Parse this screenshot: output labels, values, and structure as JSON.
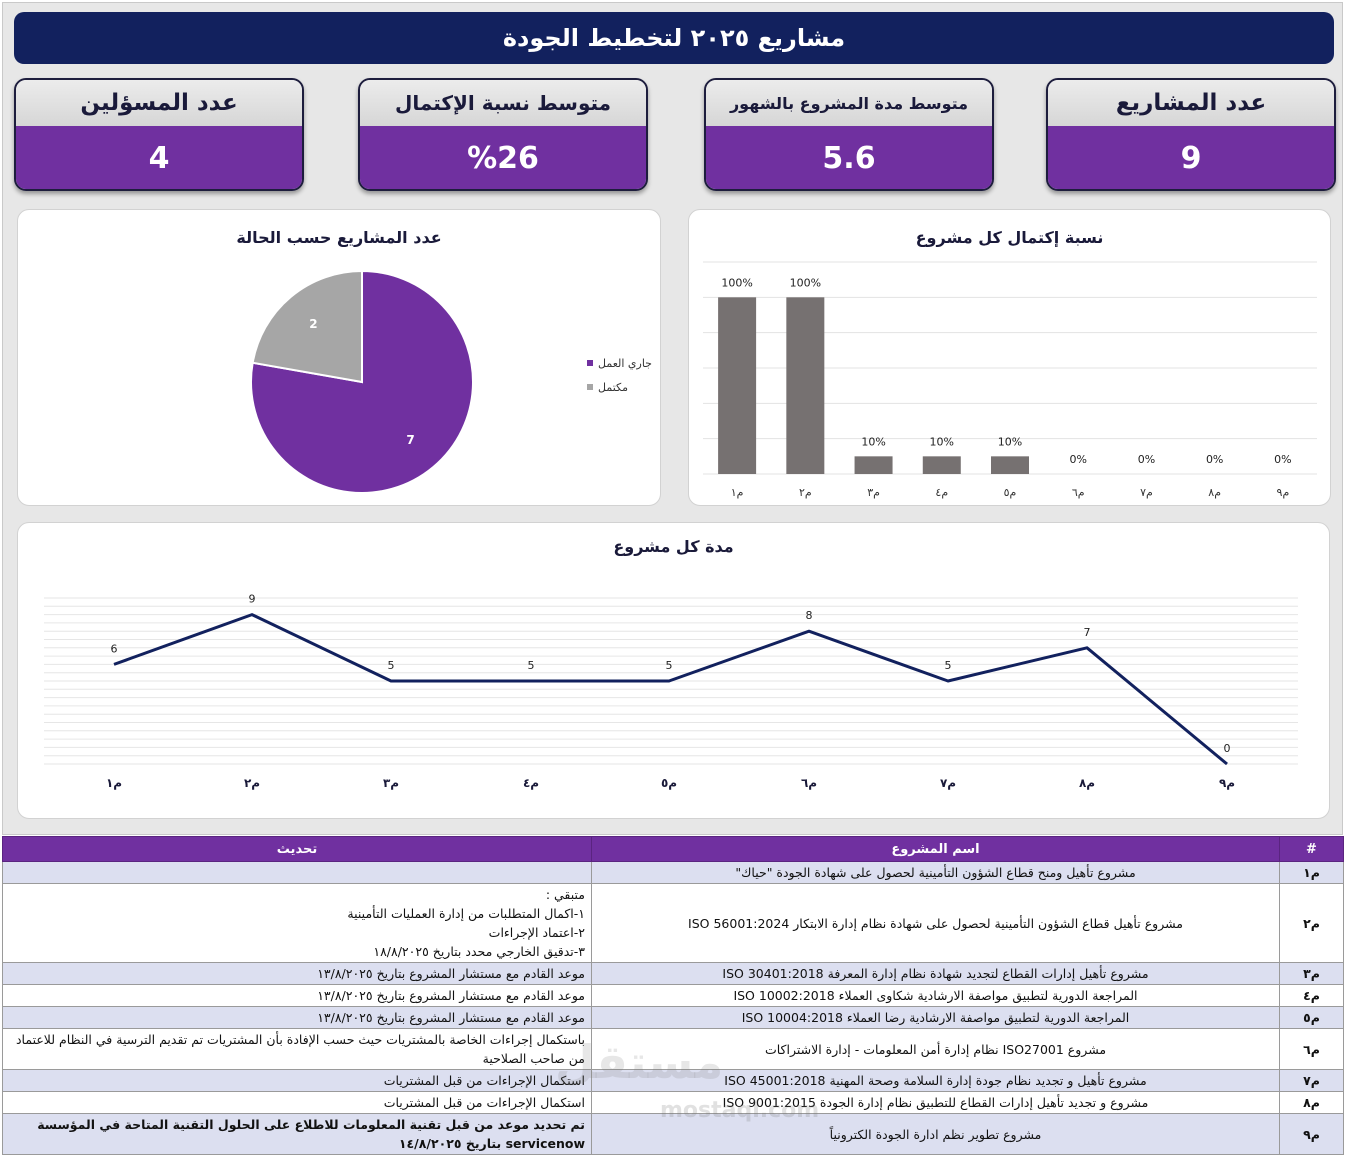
{
  "title": "مشاريع ٢٠٢٥ لتخطيط الجودة",
  "kpis": [
    {
      "label": "عدد المسؤلين",
      "value": "4"
    },
    {
      "label": "متوسط نسبة الإكتمال",
      "value": "%26"
    },
    {
      "label": "متوسط مدة المشروع بالشهور",
      "value": "5.6"
    },
    {
      "label": "عدد المشاريع",
      "value": "9"
    }
  ],
  "pie_panel": {
    "title": "عدد المشاريع حسب الحالة"
  },
  "bar_panel": {
    "title": "نسبة إكتمال كل مشروع"
  },
  "line_panel": {
    "title": "مدة كل مشروع"
  },
  "chart_data": [
    {
      "type": "pie",
      "title": "عدد المشاريع حسب الحالة",
      "slices": [
        {
          "name": "جاري العمل",
          "value": 7,
          "color": "#7030a0"
        },
        {
          "name": "مكتمل",
          "value": 2,
          "color": "#a6a6a6"
        }
      ],
      "legend": "right"
    },
    {
      "type": "bar",
      "title": "نسبة إكتمال كل مشروع",
      "categories": [
        "م١",
        "م٢",
        "م٣",
        "م٤",
        "م٥",
        "م٦",
        "م٧",
        "م٨",
        "م٩"
      ],
      "values": [
        100,
        100,
        10,
        10,
        10,
        0,
        0,
        0,
        0
      ],
      "labels": [
        "100%",
        "100%",
        "10%",
        "10%",
        "10%",
        "0%",
        "0%",
        "0%",
        "0%"
      ],
      "ylim": [
        0,
        120
      ],
      "color": "#767171",
      "grid": true
    },
    {
      "type": "line",
      "title": "مدة كل مشروع",
      "categories": [
        "م١",
        "م٢",
        "م٣",
        "م٤",
        "م٥",
        "م٦",
        "م٧",
        "م٨",
        "م٩"
      ],
      "values": [
        6,
        9,
        5,
        5,
        5,
        8,
        5,
        7,
        0
      ],
      "ylim": [
        0,
        10
      ],
      "color": "#12215e",
      "grid": true
    }
  ],
  "table": {
    "headers": {
      "num": "#",
      "name": "اسم المشروع",
      "update": "تحديث"
    },
    "rows": [
      {
        "num": "م١",
        "name": "مشروع تأهيل ومنح قطاع الشؤون التأمينية لحصول على شهادة الجودة \"حياك\"",
        "update": ""
      },
      {
        "num": "م٢",
        "name": "مشروع تأهيل قطاع الشؤون التأمينية لحصول على شهادة نظام إدارة الابتكار ISO 56001:2024",
        "update": "متبقي :\n١-اكمال المتطلبات من إدارة العمليات التأمينية\n٢-اعتماد الإجراءات\n٣-تدقيق الخارجي محدد بتاريخ ١٨/٨/٢٠٢٥"
      },
      {
        "num": "م٣",
        "name": "مشروع تأهيل إدارات القطاع لتجديد شهادة نظام إدارة المعرفة ISO 30401:2018",
        "update": "موعد القادم مع مستشار المشروع بتاريخ ١٣/٨/٢٠٢٥"
      },
      {
        "num": "م٤",
        "name": "المراجعة الدورية  لتطبيق مواصفة الارشادية شكاوى العملاء ISO 10002:2018",
        "update": "موعد القادم مع مستشار المشروع بتاريخ ١٣/٨/٢٠٢٥"
      },
      {
        "num": "م٥",
        "name": "المراجعة الدورية لتطبيق مواصفة الارشادية رضا  العملاء ISO 10004:2018",
        "update": "موعد القادم مع مستشار المشروع بتاريخ ١٣/٨/٢٠٢٥"
      },
      {
        "num": "م٦",
        "name": "مشروع ISO27001 نظام إدارة أمن المعلومات - إدارة الاشتراكات",
        "update": "باستكمال إجراءات الخاصة بالمشتريات حيث حسب الإفادة بأن المشتريات تم تقديم الترسية في النظام للاعتماد من صاحب الصلاحية"
      },
      {
        "num": "م٧",
        "name": "مشروع تأهيل و تجديد نظام جودة إدارة السلامة وصحة المهنية ISO 45001:2018",
        "update": "استكمال الإجراءات من قبل المشتريات"
      },
      {
        "num": "م٨",
        "name": "مشروع و تجديد تأهيل إدارات القطاع للتطبيق نظام إدارة الجودة ISO 9001:2015",
        "update": "استكمال الإجراءات من قبل المشتريات"
      },
      {
        "num": "م٩",
        "name": "مشروع تطوير نظم ادارة الجودة الكترونياً",
        "update": "تم تحديد موعد من قبل تقنية المعلومات للاطلاع على الحلول التقنية المتاحة في المؤسسة servicenow بتاريخ ١٤/٨/٢٠٢٥"
      }
    ]
  },
  "watermark": {
    "logo": "مستقل",
    "site": "mostaql.com"
  }
}
